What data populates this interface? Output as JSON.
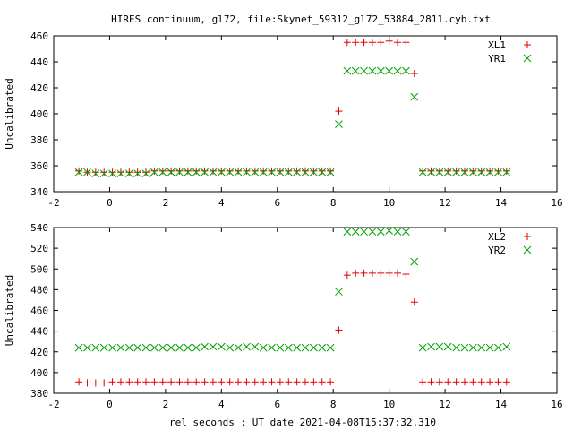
{
  "title": "HIRES continuum, gl72, file:Skynet_59312_gl72_53884_2811.cyb.txt",
  "xlabel": "rel seconds : UT date 2021-04-08T15:37:32.310",
  "colors": {
    "red": "#e00000",
    "green": "#00a000"
  },
  "chart_data": [
    {
      "type": "scatter",
      "ylabel": "Uncalibrated",
      "xlim": [
        -2,
        16
      ],
      "ylim": [
        340,
        460
      ],
      "xticks": [
        -2,
        0,
        2,
        4,
        6,
        8,
        10,
        12,
        14,
        16
      ],
      "yticks": [
        340,
        360,
        380,
        400,
        420,
        440,
        460
      ],
      "x": [
        -1.1,
        -0.8,
        -0.5,
        -0.2,
        0.1,
        0.4,
        0.7,
        1.0,
        1.3,
        1.6,
        1.9,
        2.2,
        2.5,
        2.8,
        3.1,
        3.4,
        3.7,
        4.0,
        4.3,
        4.6,
        4.9,
        5.2,
        5.5,
        5.8,
        6.1,
        6.4,
        6.7,
        7.0,
        7.3,
        7.6,
        7.9,
        8.2,
        8.5,
        8.8,
        9.1,
        9.4,
        9.7,
        10.0,
        10.3,
        10.6,
        10.9,
        11.2,
        11.5,
        11.8,
        12.1,
        12.4,
        12.7,
        13.0,
        13.3,
        13.6,
        13.9,
        14.2
      ],
      "series": [
        {
          "name": "XL1",
          "marker": "plus",
          "color": "#e00000",
          "values": [
            356,
            355,
            355,
            355,
            355,
            355,
            355,
            355,
            355,
            356,
            356,
            356,
            356,
            356,
            356,
            356,
            356,
            356,
            356,
            356,
            356,
            356,
            356,
            356,
            356,
            356,
            356,
            356,
            356,
            356,
            356,
            402,
            455,
            455,
            455,
            455,
            455,
            456,
            455,
            455,
            431,
            356,
            356,
            356,
            356,
            356,
            356,
            356,
            356,
            356,
            356,
            356
          ]
        },
        {
          "name": "YR1",
          "marker": "cross",
          "color": "#00a000",
          "values": [
            355,
            355,
            354,
            354,
            354,
            354,
            354,
            354,
            354,
            355,
            355,
            355,
            355,
            355,
            355,
            355,
            355,
            355,
            355,
            355,
            355,
            355,
            355,
            355,
            355,
            355,
            355,
            355,
            355,
            355,
            355,
            392,
            433,
            433,
            433,
            433,
            433,
            433,
            433,
            433,
            413,
            355,
            355,
            355,
            355,
            355,
            355,
            355,
            355,
            355,
            355,
            355
          ]
        }
      ]
    },
    {
      "type": "scatter",
      "ylabel": "Uncalibrated",
      "xlim": [
        -2,
        16
      ],
      "ylim": [
        380,
        540
      ],
      "xticks": [
        -2,
        0,
        2,
        4,
        6,
        8,
        10,
        12,
        14,
        16
      ],
      "yticks": [
        380,
        400,
        420,
        440,
        460,
        480,
        500,
        520,
        540
      ],
      "x": [
        -1.1,
        -0.8,
        -0.5,
        -0.2,
        0.1,
        0.4,
        0.7,
        1.0,
        1.3,
        1.6,
        1.9,
        2.2,
        2.5,
        2.8,
        3.1,
        3.4,
        3.7,
        4.0,
        4.3,
        4.6,
        4.9,
        5.2,
        5.5,
        5.8,
        6.1,
        6.4,
        6.7,
        7.0,
        7.3,
        7.6,
        7.9,
        8.2,
        8.5,
        8.8,
        9.1,
        9.4,
        9.7,
        10.0,
        10.3,
        10.6,
        10.9,
        11.2,
        11.5,
        11.8,
        12.1,
        12.4,
        12.7,
        13.0,
        13.3,
        13.6,
        13.9,
        14.2
      ],
      "series": [
        {
          "name": "XL2",
          "marker": "plus",
          "color": "#e00000",
          "values": [
            391,
            390,
            390,
            390,
            391,
            391,
            391,
            391,
            391,
            391,
            391,
            391,
            391,
            391,
            391,
            391,
            391,
            391,
            391,
            391,
            391,
            391,
            391,
            391,
            391,
            391,
            391,
            391,
            391,
            391,
            391,
            441,
            494,
            496,
            496,
            496,
            496,
            496,
            496,
            495,
            468,
            391,
            391,
            391,
            391,
            391,
            391,
            391,
            391,
            391,
            391,
            391
          ]
        },
        {
          "name": "YR2",
          "marker": "cross",
          "color": "#00a000",
          "values": [
            424,
            424,
            424,
            424,
            424,
            424,
            424,
            424,
            424,
            424,
            424,
            424,
            424,
            424,
            424,
            425,
            425,
            425,
            424,
            424,
            425,
            425,
            424,
            424,
            424,
            424,
            424,
            424,
            424,
            424,
            424,
            478,
            536,
            536,
            536,
            536,
            536,
            537,
            536,
            536,
            507,
            424,
            425,
            425,
            425,
            424,
            424,
            424,
            424,
            424,
            424,
            425
          ]
        }
      ]
    }
  ]
}
